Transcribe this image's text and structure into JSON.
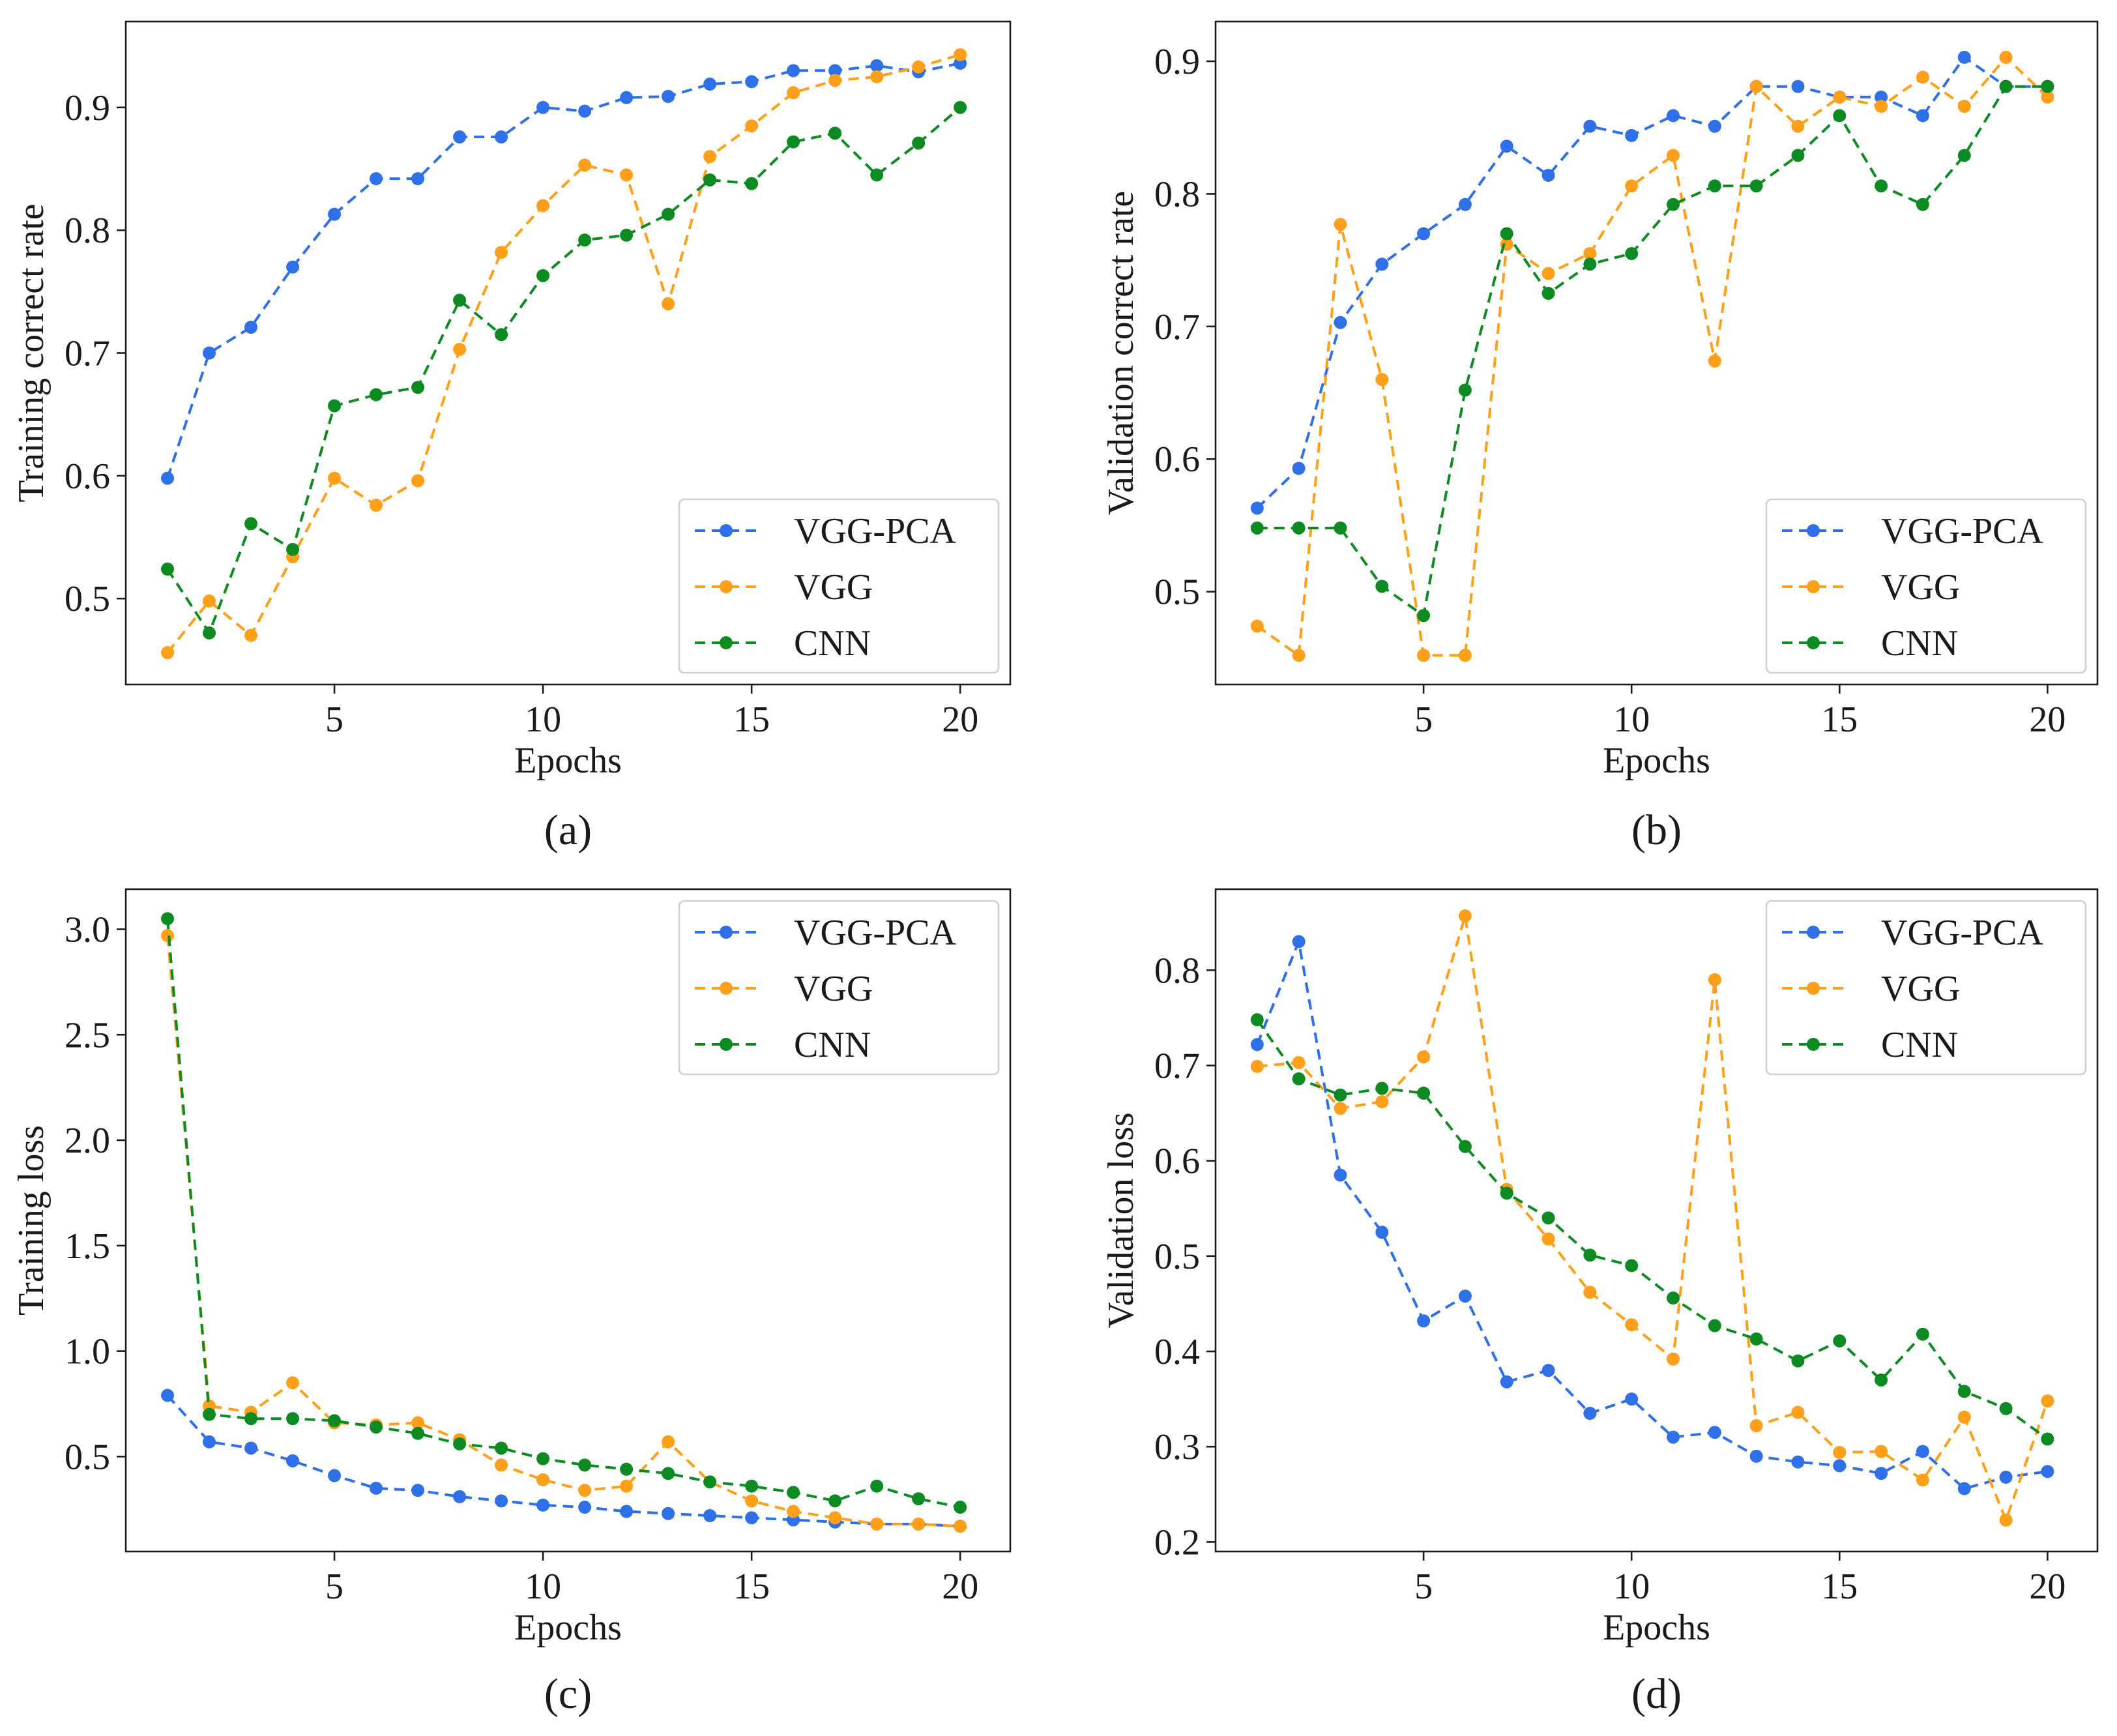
{
  "colors": {
    "VGG-PCA": "#2f6fe8",
    "VGG": "#ff9f1a",
    "CNN": "#0d8a22"
  },
  "chart_data": [
    {
      "type": "line",
      "caption": "(a)",
      "xlabel": "Epochs",
      "ylabel": "Training correct rate",
      "xlim": [
        0,
        21.2
      ],
      "ylim": [
        0.43,
        0.97
      ],
      "xticks": [
        5,
        10,
        15,
        20
      ],
      "xtick_labels": [
        "5",
        "10",
        "15",
        "20"
      ],
      "yticks": [
        0.5,
        0.6,
        0.7,
        0.8,
        0.9
      ],
      "ytick_labels": [
        "0.5",
        "0.6",
        "0.7",
        "0.8",
        "0.9"
      ],
      "legend_position": "lower-right",
      "x": [
        1,
        2,
        3,
        4,
        5,
        6,
        7,
        8,
        9,
        10,
        11,
        12,
        13,
        14,
        15,
        16,
        17,
        18,
        19,
        20
      ],
      "series": [
        {
          "name": "VGG-PCA",
          "values": [
            0.598,
            0.7,
            0.721,
            0.77,
            0.813,
            0.842,
            0.842,
            0.876,
            0.876,
            0.9,
            0.897,
            0.908,
            0.909,
            0.919,
            0.921,
            0.93,
            0.93,
            0.934,
            0.929,
            0.936
          ]
        },
        {
          "name": "VGG",
          "values": [
            0.456,
            0.498,
            0.47,
            0.534,
            0.598,
            0.576,
            0.596,
            0.703,
            0.782,
            0.82,
            0.853,
            0.845,
            0.74,
            0.86,
            0.885,
            0.912,
            0.922,
            0.925,
            0.933,
            0.943
          ]
        },
        {
          "name": "CNN",
          "values": [
            0.524,
            0.472,
            0.561,
            0.54,
            0.657,
            0.666,
            0.672,
            0.743,
            0.715,
            0.763,
            0.792,
            0.796,
            0.813,
            0.841,
            0.838,
            0.872,
            0.879,
            0.845,
            0.871,
            0.9
          ]
        }
      ]
    },
    {
      "type": "line",
      "caption": "(b)",
      "xlabel": "Epochs",
      "ylabel": "Validation correct rate",
      "xlim": [
        0,
        21.2
      ],
      "ylim": [
        0.43,
        0.93
      ],
      "xticks": [
        5,
        10,
        15,
        20
      ],
      "xtick_labels": [
        "5",
        "10",
        "15",
        "20"
      ],
      "yticks": [
        0.5,
        0.6,
        0.7,
        0.8,
        0.9
      ],
      "ytick_labels": [
        "0.5",
        "0.6",
        "0.7",
        "0.8",
        "0.9"
      ],
      "legend_position": "lower-right",
      "x": [
        1,
        2,
        3,
        4,
        5,
        6,
        7,
        8,
        9,
        10,
        11,
        12,
        13,
        14,
        15,
        16,
        17,
        18,
        19,
        20
      ],
      "series": [
        {
          "name": "VGG-PCA",
          "values": [
            0.563,
            0.593,
            0.703,
            0.747,
            0.77,
            0.792,
            0.836,
            0.814,
            0.851,
            0.844,
            0.859,
            0.851,
            0.881,
            0.881,
            0.873,
            0.873,
            0.859,
            0.903,
            0.881,
            0.881
          ]
        },
        {
          "name": "VGG",
          "values": [
            0.474,
            0.452,
            0.777,
            0.66,
            0.452,
            0.452,
            0.762,
            0.74,
            0.755,
            0.806,
            0.829,
            0.674,
            0.881,
            0.851,
            0.873,
            0.866,
            0.888,
            0.866,
            0.903,
            0.873
          ]
        },
        {
          "name": "CNN",
          "values": [
            0.548,
            0.548,
            0.548,
            0.504,
            0.482,
            0.652,
            0.77,
            0.725,
            0.747,
            0.755,
            0.792,
            0.806,
            0.806,
            0.829,
            0.859,
            0.806,
            0.792,
            0.829,
            0.881,
            0.881
          ]
        }
      ]
    },
    {
      "type": "line",
      "caption": "(c)",
      "xlabel": "Epochs",
      "ylabel": "Training loss",
      "xlim": [
        0,
        21.2
      ],
      "ylim": [
        0.05,
        3.19
      ],
      "xticks": [
        5,
        10,
        15,
        20
      ],
      "xtick_labels": [
        "5",
        "10",
        "15",
        "20"
      ],
      "yticks": [
        0.5,
        1.0,
        1.5,
        2.0,
        2.5,
        3.0
      ],
      "ytick_labels": [
        "0.5",
        "1.0",
        "1.5",
        "2.0",
        "2.5",
        "3.0"
      ],
      "legend_position": "top-right",
      "x": [
        1,
        2,
        3,
        4,
        5,
        6,
        7,
        8,
        9,
        10,
        11,
        12,
        13,
        14,
        15,
        16,
        17,
        18,
        19,
        20
      ],
      "series": [
        {
          "name": "VGG-PCA",
          "values": [
            0.79,
            0.57,
            0.54,
            0.48,
            0.41,
            0.35,
            0.34,
            0.31,
            0.29,
            0.27,
            0.26,
            0.24,
            0.23,
            0.22,
            0.21,
            0.2,
            0.19,
            0.18,
            0.18,
            0.17
          ]
        },
        {
          "name": "VGG",
          "values": [
            2.97,
            0.74,
            0.71,
            0.85,
            0.66,
            0.65,
            0.66,
            0.58,
            0.46,
            0.39,
            0.34,
            0.36,
            0.57,
            0.38,
            0.29,
            0.24,
            0.21,
            0.18,
            0.18,
            0.17
          ]
        },
        {
          "name": "CNN",
          "values": [
            3.05,
            0.7,
            0.68,
            0.68,
            0.67,
            0.64,
            0.61,
            0.56,
            0.54,
            0.49,
            0.46,
            0.44,
            0.42,
            0.38,
            0.36,
            0.33,
            0.29,
            0.36,
            0.3,
            0.26
          ]
        }
      ]
    },
    {
      "type": "line",
      "caption": "(d)",
      "xlabel": "Epochs",
      "ylabel": "Validation loss",
      "xlim": [
        0,
        21.2
      ],
      "ylim": [
        0.19,
        0.885
      ],
      "xticks": [
        5,
        10,
        15,
        20
      ],
      "xtick_labels": [
        "5",
        "10",
        "15",
        "20"
      ],
      "yticks": [
        0.2,
        0.3,
        0.4,
        0.5,
        0.6,
        0.7,
        0.8
      ],
      "ytick_labels": [
        "0.2",
        "0.3",
        "0.4",
        "0.5",
        "0.6",
        "0.7",
        "0.8"
      ],
      "legend_position": "top-right",
      "x": [
        1,
        2,
        3,
        4,
        5,
        6,
        7,
        8,
        9,
        10,
        11,
        12,
        13,
        14,
        15,
        16,
        17,
        18,
        19,
        20
      ],
      "series": [
        {
          "name": "VGG-PCA",
          "values": [
            0.722,
            0.83,
            0.585,
            0.525,
            0.432,
            0.458,
            0.368,
            0.38,
            0.335,
            0.35,
            0.31,
            0.315,
            0.29,
            0.284,
            0.28,
            0.272,
            0.295,
            0.256,
            0.268,
            0.274
          ]
        },
        {
          "name": "VGG",
          "values": [
            0.699,
            0.703,
            0.655,
            0.662,
            0.709,
            0.857,
            0.57,
            0.518,
            0.462,
            0.428,
            0.392,
            0.79,
            0.322,
            0.336,
            0.294,
            0.295,
            0.265,
            0.331,
            0.223,
            0.348
          ]
        },
        {
          "name": "CNN",
          "values": [
            0.748,
            0.686,
            0.669,
            0.676,
            0.671,
            0.615,
            0.566,
            0.54,
            0.501,
            0.49,
            0.456,
            0.427,
            0.413,
            0.39,
            0.411,
            0.37,
            0.418,
            0.358,
            0.34,
            0.308
          ]
        }
      ]
    }
  ]
}
